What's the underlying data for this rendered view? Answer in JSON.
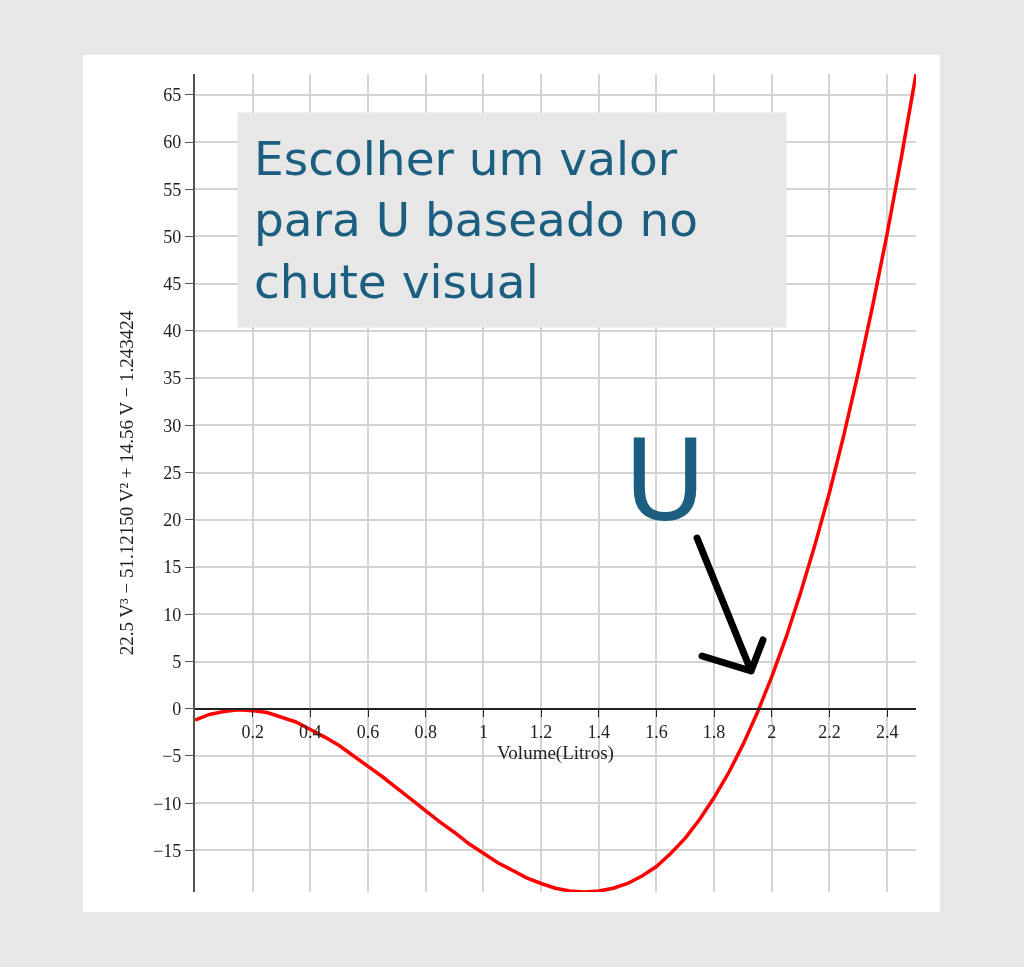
{
  "chart_data": {
    "type": "line",
    "xlabel": "Volume(Litros)",
    "ylabel": "22.5 V³ − 51.12150 V² + 14.56 V − 1.243424",
    "x": [
      0,
      0.05,
      0.1,
      0.15,
      0.2,
      0.25,
      0.3,
      0.35,
      0.4,
      0.45,
      0.5,
      0.55,
      0.6,
      0.65,
      0.7,
      0.75,
      0.8,
      0.85,
      0.9,
      0.95,
      1.0,
      1.05,
      1.1,
      1.15,
      1.2,
      1.25,
      1.3,
      1.35,
      1.4,
      1.45,
      1.5,
      1.55,
      1.6,
      1.65,
      1.7,
      1.75,
      1.8,
      1.85,
      1.9,
      1.95,
      2.0,
      2.05,
      2.1,
      2.15,
      2.2,
      2.25,
      2.3,
      2.35,
      2.4,
      2.45,
      2.5
    ],
    "series": [
      {
        "color": "#ff0000",
        "values": [
          -1.2,
          -0.6,
          -0.3,
          -0.1,
          -0.2,
          -0.4,
          -0.9,
          -1.4,
          -2.2,
          -3.0,
          -3.9,
          -5.0,
          -6.1,
          -7.2,
          -8.4,
          -9.6,
          -10.8,
          -12.0,
          -13.1,
          -14.3,
          -15.3,
          -16.3,
          -17.1,
          -17.9,
          -18.5,
          -19.0,
          -19.3,
          -19.4,
          -19.3,
          -19.0,
          -18.5,
          -17.7,
          -16.7,
          -15.3,
          -13.7,
          -11.7,
          -9.4,
          -6.8,
          -3.8,
          -0.4,
          3.4,
          7.6,
          12.3,
          17.4,
          22.9,
          29.0,
          35.6,
          42.7,
          50.3,
          58.5,
          67.2
        ]
      }
    ],
    "xlim": [
      0,
      2.5
    ],
    "ylim": [
      -19.4,
      67.2
    ],
    "xticks": [
      0.2,
      0.4,
      0.6,
      0.8,
      1,
      1.2,
      1.4,
      1.6,
      1.8,
      2,
      2.2,
      2.4
    ],
    "yticks": [
      {
        "value": -15,
        "label": "−15"
      },
      {
        "value": -10,
        "label": "−10"
      },
      {
        "value": -5,
        "label": "−5"
      },
      0,
      5,
      10,
      15,
      20,
      25,
      30,
      35,
      40,
      45,
      50,
      55,
      60,
      65
    ],
    "grid": true,
    "annotations": [
      "Escolher um valor\npara U baseado no\nchute visual",
      "U"
    ]
  }
}
